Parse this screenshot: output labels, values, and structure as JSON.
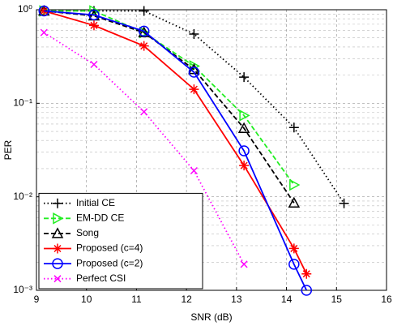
{
  "chart_data": {
    "type": "line",
    "x_label": "SNR (dB)",
    "y_label": "PER",
    "log_y": true,
    "grid": true,
    "legend_position": "lower left",
    "xlim": [
      9,
      16
    ],
    "xticks": [
      9,
      10,
      11,
      12,
      13,
      14,
      15,
      16
    ],
    "ylim": [
      0.001,
      1
    ],
    "yticks": [
      {
        "value": 0.001,
        "label": "10⁻³"
      },
      {
        "value": 0.01,
        "label": "10⁻²"
      },
      {
        "value": 0.1,
        "label": "10⁻¹"
      },
      {
        "value": 1,
        "label": "10⁰"
      }
    ],
    "series": [
      {
        "name": "Initial CE",
        "color": "#000000",
        "dash": "dot",
        "marker": "plus",
        "x": [
          9.15,
          10.15,
          11.15,
          12.15,
          13.15,
          14.15,
          15.15
        ],
        "values": [
          0.97,
          0.97,
          0.97,
          0.55,
          0.19,
          0.055,
          0.0085
        ]
      },
      {
        "name": "EM-DD CE",
        "color": "#22ee22",
        "dash": "dash",
        "marker": "triangle-right",
        "x": [
          9.15,
          10.15,
          11.15,
          12.15,
          13.15,
          14.15
        ],
        "values": [
          0.97,
          0.97,
          0.57,
          0.25,
          0.074,
          0.0134
        ]
      },
      {
        "name": "Song",
        "color": "#000000",
        "dash": "dash",
        "marker": "triangle-up",
        "x": [
          9.15,
          10.15,
          11.15,
          12.15,
          13.15,
          14.15
        ],
        "values": [
          0.97,
          0.86,
          0.57,
          0.23,
          0.054,
          0.0086
        ]
      },
      {
        "name": "Proposed (c=4)",
        "color": "#ff0000",
        "dash": "solid",
        "marker": "asterisk",
        "x": [
          9.15,
          10.15,
          11.15,
          12.15,
          13.15,
          14.15,
          14.4
        ],
        "values": [
          0.97,
          0.68,
          0.41,
          0.141,
          0.0216,
          0.0028,
          0.0015
        ]
      },
      {
        "name": "Proposed (c=2)",
        "color": "#0000ff",
        "dash": "solid",
        "marker": "circle",
        "x": [
          9.15,
          10.15,
          11.15,
          12.15,
          13.15,
          14.15,
          14.4
        ],
        "values": [
          0.97,
          0.88,
          0.59,
          0.215,
          0.031,
          0.0019,
          0.001
        ]
      },
      {
        "name": "Perfect CSI",
        "color": "#ff00ff",
        "dash": "dot",
        "marker": "x",
        "x": [
          9.15,
          10.15,
          11.15,
          12.15,
          13.15
        ],
        "values": [
          0.57,
          0.26,
          0.081,
          0.019,
          0.0019
        ]
      }
    ]
  }
}
